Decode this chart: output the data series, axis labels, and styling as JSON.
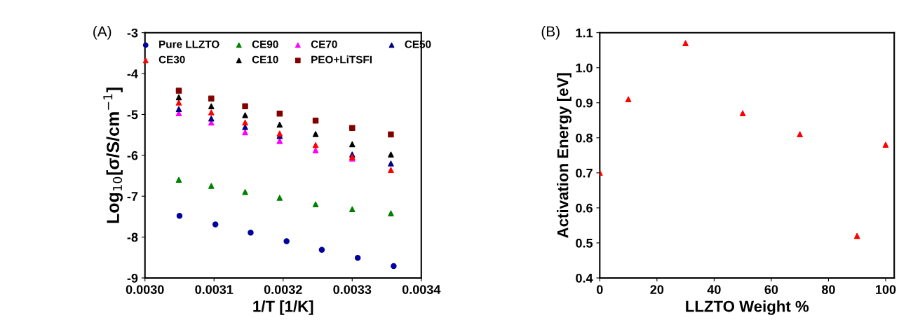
{
  "chart_data": [
    {
      "type": "scatter",
      "xlabel": "1/T [1/K]",
      "ylabel": "Log$_{10}$[σ/S/cm$^{−1}$]",
      "annotations": [
        "(A)"
      ],
      "xlim": [
        0.003,
        0.0034
      ],
      "xticks": [
        {
          "value": 0.003,
          "label": "0.0030"
        },
        {
          "value": 0.0031,
          "label": "0.0031"
        },
        {
          "value": 0.0032,
          "label": "0.0032"
        },
        {
          "value": 0.0033,
          "label": "0.0033"
        },
        {
          "value": 0.0034,
          "label": "0.0034"
        }
      ],
      "ylim": [
        -9,
        -3
      ],
      "yticks": [
        -9,
        -8,
        -7,
        -6,
        -5,
        -4,
        -3
      ],
      "legend": "top",
      "grid": false,
      "series": [
        {
          "name": "Pure LLZTO",
          "color": "#0000a0",
          "marker": "circle",
          "x": [
            0.00305,
            0.003102,
            0.003153,
            0.003205,
            0.003256,
            0.003308,
            0.00336
          ],
          "values": [
            -7.48,
            -7.69,
            -7.89,
            -8.1,
            -8.31,
            -8.51,
            -8.71
          ]
        },
        {
          "name": "CE90",
          "color": "#008000",
          "marker": "triangle",
          "x": [
            0.003049,
            0.003096,
            0.003145,
            0.003195,
            0.003247,
            0.0033,
            0.003356
          ],
          "values": [
            -6.6,
            -6.75,
            -6.9,
            -7.04,
            -7.2,
            -7.32,
            -7.42
          ]
        },
        {
          "name": "CE70",
          "color": "#ff00ff",
          "marker": "triangle",
          "x": [
            0.003049,
            0.003096,
            0.003145,
            0.003195,
            0.003247,
            0.0033
          ],
          "values": [
            -4.97,
            -5.2,
            -5.44,
            -5.65,
            -5.88,
            -6.08
          ]
        },
        {
          "name": "CE50",
          "color": "#000080",
          "marker": "triangle",
          "x": [
            0.003049,
            0.003096,
            0.003145,
            0.003195,
            0.003247,
            0.0033,
            0.003356
          ],
          "values": [
            -4.87,
            -5.1,
            -5.31,
            -5.53,
            null,
            -5.98,
            -6.2
          ]
        },
        {
          "name": "CE30",
          "color": "#ff0000",
          "marker": "triangle",
          "x": [
            0.003049,
            0.003096,
            0.003145,
            0.003195,
            0.003247,
            0.0033,
            0.003356
          ],
          "values": [
            -4.71,
            -4.95,
            -5.2,
            -5.47,
            -5.75,
            -6.04,
            -6.36
          ]
        },
        {
          "name": "CE10",
          "color": "#000000",
          "marker": "triangle",
          "x": [
            0.003049,
            0.003096,
            0.003145,
            0.003195,
            0.003247,
            0.0033,
            0.003356
          ],
          "values": [
            -4.58,
            -4.8,
            -5.02,
            -5.25,
            -5.48,
            -5.73,
            -5.98
          ]
        },
        {
          "name": "PEO+LiTSFI",
          "color": "#800000",
          "marker": "square",
          "x": [
            0.003049,
            0.003096,
            0.003145,
            0.003195,
            0.003247,
            0.0033,
            0.003356
          ],
          "values": [
            -4.42,
            -4.61,
            -4.8,
            -4.98,
            -5.15,
            -5.33,
            -5.49
          ]
        }
      ]
    },
    {
      "type": "scatter",
      "xlabel": "LLZTO Weight %",
      "ylabel": "Activation Energy [eV]",
      "annotations": [
        "(B)"
      ],
      "xlim": [
        0,
        103
      ],
      "xticks": [
        0,
        20,
        40,
        60,
        80,
        100
      ],
      "ylim": [
        0.4,
        1.1
      ],
      "yticks": [
        0.4,
        0.5,
        0.6,
        0.7,
        0.8,
        0.9,
        {
          "value": 1.0,
          "label": "1.0"
        },
        1.1
      ],
      "grid": false,
      "legend": false,
      "series": [
        {
          "color": "#ff0000",
          "marker": "triangle",
          "x": [
            0,
            10,
            30,
            50,
            70,
            90,
            100
          ],
          "values": [
            0.7,
            0.91,
            1.07,
            0.87,
            0.81,
            0.52,
            0.78
          ]
        }
      ]
    }
  ]
}
